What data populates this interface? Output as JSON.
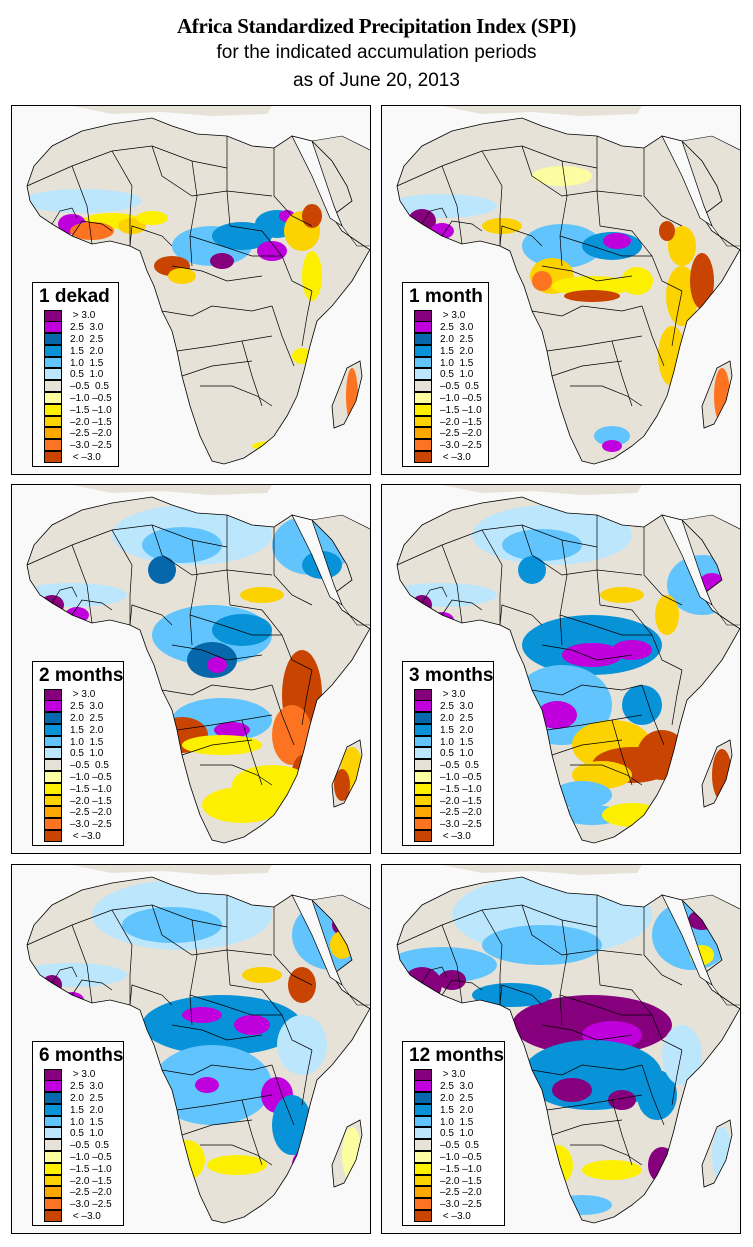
{
  "title": {
    "main": "Africa Standardized Precipitation Index (SPI)",
    "line2": "for the indicated accumulation periods",
    "line3": "as of June 20, 2013"
  },
  "legend": {
    "classes": [
      {
        "label": " > 3.0",
        "color": "#86007e"
      },
      {
        "label": "2.5  3.0",
        "color": "#c000dc"
      },
      {
        "label": "2.0  2.5",
        "color": "#0668aa"
      },
      {
        "label": "1.5  2.0",
        "color": "#0892d8"
      },
      {
        "label": "1.0  1.5",
        "color": "#62c4fc"
      },
      {
        "label": "0.5  1.0",
        "color": "#bce6fc"
      },
      {
        "label": "–0.5  0.5",
        "color": "#e6e2d8"
      },
      {
        "label": "–1.0 –0.5",
        "color": "#fcfca0"
      },
      {
        "label": "–1.5 –1.0",
        "color": "#fcf000"
      },
      {
        "label": "–2.0 –1.5",
        "color": "#fcd200"
      },
      {
        "label": "–2.5 –2.0",
        "color": "#fca800"
      },
      {
        "label": "–3.0 –2.5",
        "color": "#fc7422"
      },
      {
        "label": " < –3.0",
        "color": "#c84400"
      }
    ]
  },
  "colors": {
    "land": "#e6e2d8",
    "water": "#f9f9f9",
    "border": "#000000"
  },
  "panels": [
    {
      "label": "1 dekad",
      "pattern": "dekad"
    },
    {
      "label": "1 month",
      "pattern": "month1"
    },
    {
      "label": "2 months",
      "pattern": "month2"
    },
    {
      "label": "3 months",
      "pattern": "month3"
    },
    {
      "label": "6 months",
      "pattern": "month6"
    },
    {
      "label": "12 months",
      "pattern": "month12"
    }
  ]
}
